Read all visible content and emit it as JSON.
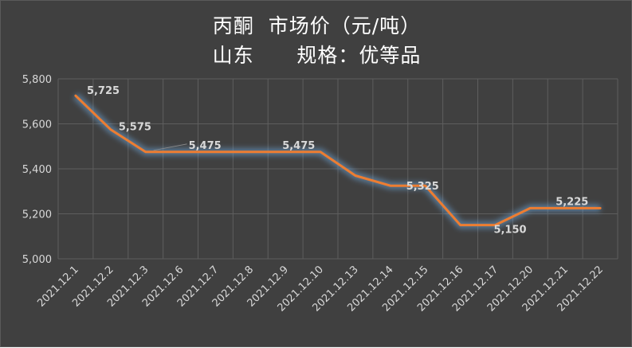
{
  "chart_data": {
    "type": "line",
    "title_line1": "丙酮  市场价（元/吨）",
    "title_line2": "山东      规格：优等品",
    "categories": [
      "2021.12.1",
      "2021.12.2",
      "2021.12.3",
      "2021.12.6",
      "2021.12.7",
      "2021.12.8",
      "2021.12.9",
      "2021.12.10",
      "2021.12.13",
      "2021.12.14",
      "2021.12.15",
      "2021.12.16",
      "2021.12.17",
      "2021.12.20",
      "2021.12.21",
      "2021.12.22"
    ],
    "series": [
      {
        "values": [
          5725,
          5575,
          5475,
          5475,
          5475,
          5475,
          5475,
          5475,
          5370,
          5325,
          5325,
          5150,
          5150,
          5225,
          5225,
          5225
        ]
      }
    ],
    "data_labels": [
      {
        "index": 0,
        "text": "5,725"
      },
      {
        "index": 1,
        "text": "5,575"
      },
      {
        "index": 3,
        "text": "5,475"
      },
      {
        "index": 6,
        "text": "5,475"
      },
      {
        "index": 10,
        "text": "5,325"
      },
      {
        "index": 12,
        "text": "5,150"
      },
      {
        "index": 14,
        "text": "5,225"
      }
    ],
    "yticks": [
      "5,000",
      "5,200",
      "5,400",
      "5,600",
      "5,800"
    ],
    "ylim": [
      5000,
      5800
    ],
    "grid": true,
    "colors": {
      "line": "#ed7d31",
      "glow": "#6fa8dc",
      "background": "#404040",
      "grid": "#5e5e5e",
      "text": "#d9d9d9"
    }
  }
}
